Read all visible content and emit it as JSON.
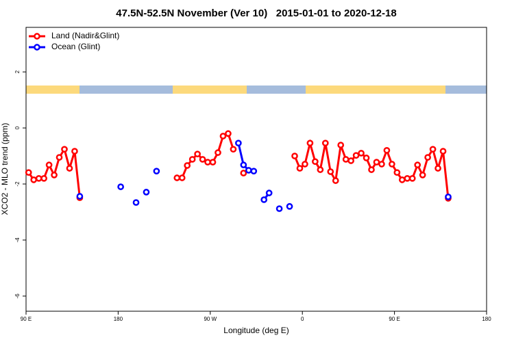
{
  "chart_data": {
    "type": "line",
    "title": "47.5N-52.5N November (Ver 10)   2015-01-01 to 2020-12-18",
    "x_label": "Longitude (deg E)",
    "y_label": "XCO2 - MLO trend (ppm)",
    "xlim": [
      90,
      540
    ],
    "ylim": [
      -6.54,
      3.59
    ],
    "xticks": [
      {
        "value": 90,
        "label": "90 E"
      },
      180,
      {
        "value": 270,
        "label": "90 W"
      },
      {
        "value": 360,
        "label": "0"
      },
      {
        "value": 450,
        "label": "90 E"
      },
      {
        "value": 540,
        "label": "180"
      }
    ],
    "yticks": [
      2,
      0,
      -2,
      -4,
      -6
    ],
    "legend": "top-left",
    "series": [
      {
        "name": "Land (Nadir&Glint)",
        "color": "#ff0000",
        "x": [
          92.5,
          97.5,
          102.5,
          107.5,
          112.5,
          117.5,
          122.5,
          127.5,
          132.5,
          137.5,
          142.5,
          147.5,
          237.5,
          242.5,
          247.5,
          252.5,
          257.5,
          262.5,
          267.5,
          272.5,
          277.5,
          282.5,
          287.5,
          292.5,
          297.5,
          302.5,
          307.5,
          352.5,
          357.5,
          362.5,
          367.5,
          372.5,
          377.5,
          382.5,
          387.5,
          392.5,
          397.5,
          402.5,
          407.5,
          412.5,
          417.5,
          422.5,
          427.5,
          432.5,
          437.5,
          442.5,
          447.5,
          452.5,
          457.5,
          462.5,
          467.5,
          472.5,
          477.5,
          482.5,
          487.5,
          492.5,
          497.5,
          502.5
        ],
        "values": [
          -1.59,
          -1.85,
          -1.8,
          -1.8,
          -1.32,
          -1.68,
          -1.05,
          -0.76,
          -1.44,
          -0.83,
          -2.49,
          null,
          -1.78,
          -1.78,
          -1.34,
          -1.12,
          -0.93,
          -1.12,
          -1.22,
          -1.22,
          -0.88,
          -0.29,
          -0.2,
          -0.76,
          null,
          -1.61,
          null,
          -1.0,
          -1.44,
          -1.29,
          -0.54,
          -1.2,
          -1.49,
          -0.54,
          -1.56,
          -1.88,
          -0.61,
          -1.12,
          -1.17,
          -0.98,
          -0.9,
          -1.07,
          -1.49,
          -1.22,
          -1.29,
          -0.8,
          -1.29,
          -1.59,
          -1.85,
          -1.8,
          -1.8,
          -1.32,
          -1.68,
          -1.05,
          -0.76,
          -1.44,
          -0.83,
          -2.51
        ]
      },
      {
        "name": "Ocean (Glint)",
        "color": "#0000ff",
        "x": [
          142.5,
          147.5,
          182.5,
          187.5,
          197.5,
          202.5,
          207.5,
          212.5,
          217.5,
          222.5,
          297.5,
          302.5,
          307.5,
          312.5,
          317.5,
          322.5,
          327.5,
          332.5,
          337.5,
          342.5,
          347.5,
          352.5,
          502.5
        ],
        "values": [
          -2.44,
          null,
          -2.1,
          null,
          -2.66,
          null,
          -2.29,
          null,
          -1.54,
          null,
          -0.54,
          -1.32,
          -1.51,
          -1.54,
          null,
          -2.56,
          -2.32,
          null,
          -2.88,
          null,
          -2.8,
          null,
          -2.46
        ]
      }
    ]
  }
}
